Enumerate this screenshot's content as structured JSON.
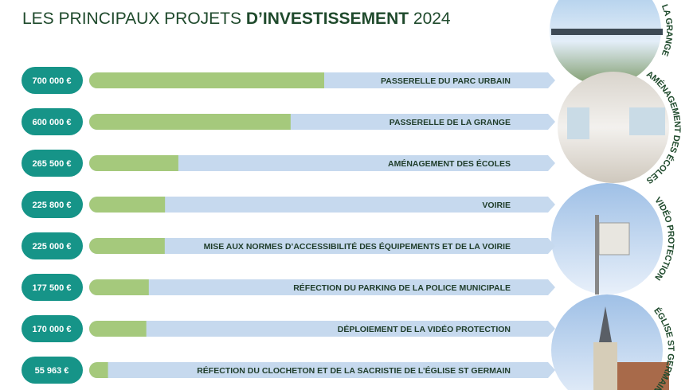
{
  "chart_data": {
    "type": "bar",
    "title": {
      "regular": "LES PRINCIPAUX PROJETS ",
      "bold": "D’INVESTISSEMENT",
      "year": " 2024"
    },
    "categories": [
      "PASSERELLE DU PARC URBAIN",
      "PASSERELLE DE LA GRANGE",
      "AMÉNAGEMENT DES ÉCOLES",
      "VOIRIE",
      "MISE AUX NORMES D’ACCESSIBILITÉ DES ÉQUIPEMENTS ET DE LA VOIRIE",
      "RÉFECTION DU PARKING DE LA POLICE MUNICIPALE",
      "DÉPLOIEMENT DE LA VIDÉO PROTECTION",
      "RÉFECTION DU CLOCHETON ET DE LA SACRISTIE DE L’ÉGLISE ST GERMAIN"
    ],
    "values": [
      700000,
      600000,
      265500,
      225800,
      225000,
      177500,
      170000,
      55963
    ],
    "value_labels": [
      "700 000 €",
      "600 000 €",
      "265 500 €",
      "225 800 €",
      "225 000 €",
      "177 500 €",
      "170 000 €",
      "55 963 €"
    ],
    "color": "#a5c97c",
    "track_color": "#c6d9ee",
    "pill_color": "#169488"
  },
  "photo_labels": [
    "LA GRANGE",
    "AMÉNAGEMENT DES ÉCOLES",
    "VIDÉO PROTECTION",
    "ÉGLISE ST GERMAIN"
  ]
}
